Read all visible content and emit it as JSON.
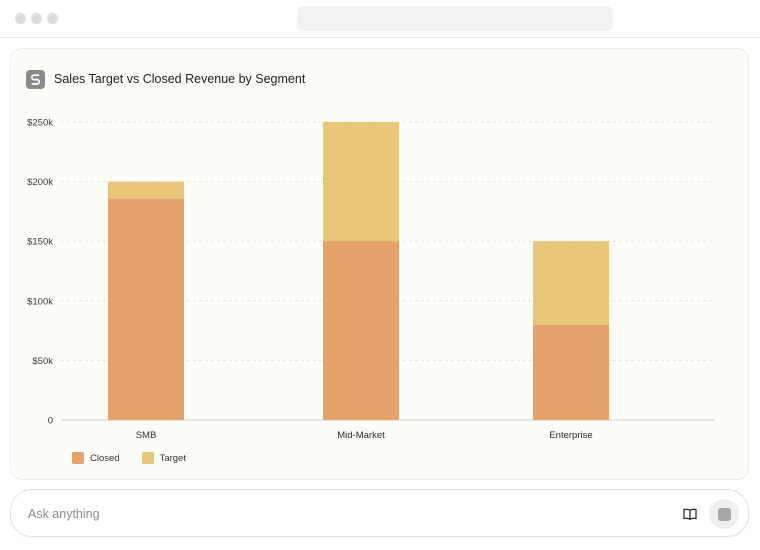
{
  "window": {
    "address_bar": ""
  },
  "card": {
    "title": "Sales Target vs Closed Revenue by Segment",
    "logo_icon": "logo-icon"
  },
  "chart_data": {
    "type": "bar",
    "stacked": true,
    "title": "Sales Target vs Closed Revenue by Segment",
    "xlabel": "",
    "ylabel": "",
    "categories": [
      "SMB",
      "Mid-Market",
      "Enterprise"
    ],
    "series": [
      {
        "name": "Closed",
        "values": [
          186000,
          150000,
          80000
        ],
        "color": "#e5a36b"
      },
      {
        "name": "Target",
        "values": [
          14000,
          100000,
          70000
        ],
        "color": "#e8c67a"
      }
    ],
    "ylim": [
      0,
      250000
    ],
    "yticks": [
      0,
      50000,
      100000,
      150000,
      200000,
      250000
    ],
    "ytick_labels": [
      "0",
      "$50k",
      "$100k",
      "$150k",
      "$200k",
      "$250k"
    ],
    "grid": true,
    "legend": "bottom-left"
  },
  "input": {
    "placeholder": "Ask anything",
    "book_icon": "book-icon",
    "stop_icon": "stop-icon"
  }
}
